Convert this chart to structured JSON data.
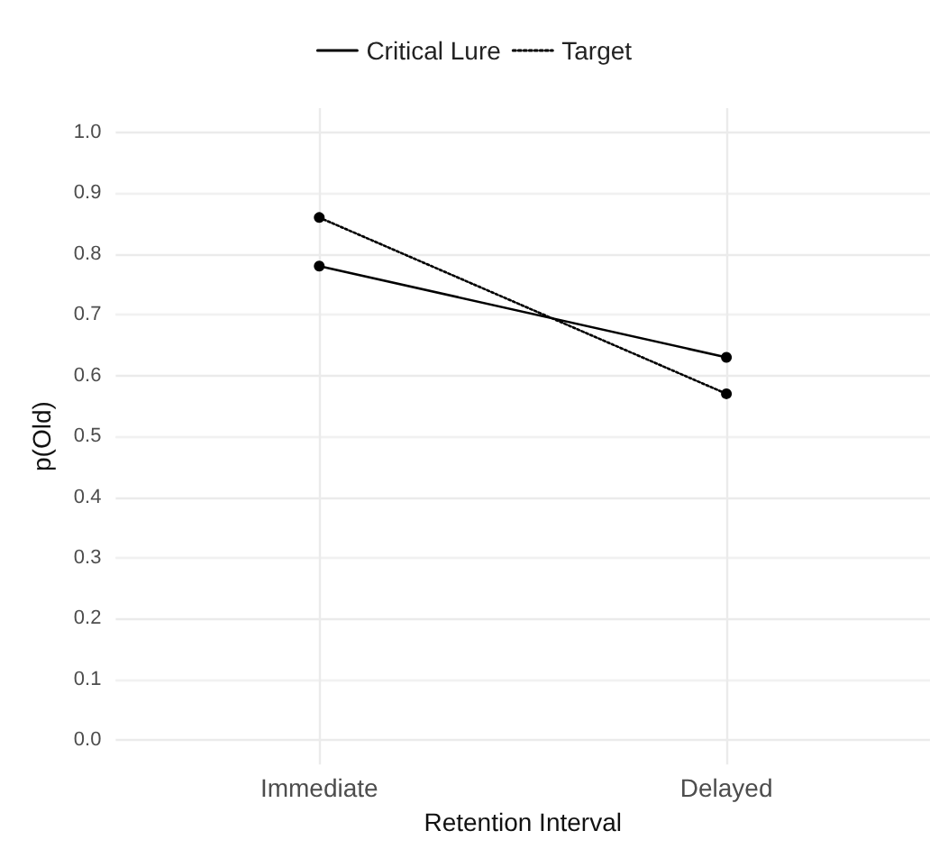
{
  "chart_data": {
    "type": "line",
    "xlabel": "Retention Interval",
    "ylabel": "p(Old)",
    "categories": [
      "Immediate",
      "Delayed"
    ],
    "series": [
      {
        "name": "Critical Lure",
        "color": "#000000",
        "line_style": "solid",
        "values": [
          0.78,
          0.63
        ]
      },
      {
        "name": "Target",
        "color": "#000000",
        "line_style": "dotted",
        "values": [
          0.86,
          0.57
        ]
      }
    ],
    "ylim": [
      -0.04,
      1.04
    ],
    "yticks": [
      {
        "value": 0,
        "label": "0.0"
      },
      0.1,
      0.2,
      0.3,
      0.4,
      0.5,
      0.6,
      0.7,
      0.8,
      0.9,
      {
        "value": 1,
        "label": "1.0"
      }
    ],
    "grid": true,
    "legend": "top",
    "marker": "circle"
  }
}
